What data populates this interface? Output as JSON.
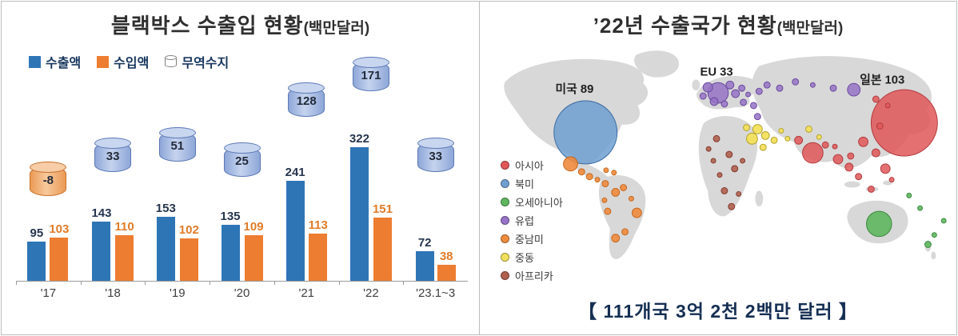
{
  "left_panel": {
    "title": "블랙박스 수출입 현황",
    "title_unit": "(백만달러)"
  },
  "right_panel": {
    "title": "’22년 수출국가 현황",
    "title_unit": "(백만달러)",
    "legend": [
      {
        "label": "아시아",
        "color": "#e15759"
      },
      {
        "label": "북미",
        "color": "#6f9fd0"
      },
      {
        "label": "오세아니아",
        "color": "#5fb65f"
      },
      {
        "label": "유럽",
        "color": "#9673c6"
      },
      {
        "label": "중남미",
        "color": "#ef8b3e"
      },
      {
        "label": "중동",
        "color": "#f2e05c"
      },
      {
        "label": "아프리카",
        "color": "#b0604f"
      }
    ],
    "caption": "【 111개국 3억 2천 2백만 달러 】"
  },
  "chart_data": [
    {
      "type": "bar",
      "title": "블랙박스 수출입 현황(백만달러)",
      "categories": [
        "'17",
        "'18",
        "'19",
        "'20",
        "'21",
        "'22",
        "'23.1~3"
      ],
      "series": [
        {
          "name": "수출액",
          "color": "#2e75b6",
          "values": [
            95,
            143,
            153,
            135,
            241,
            322,
            72
          ]
        },
        {
          "name": "수입액",
          "color": "#ed7d31",
          "values": [
            103,
            110,
            102,
            109,
            113,
            151,
            38
          ]
        },
        {
          "name": "무역수지",
          "color": "#a9bce2",
          "negative_color": "#f2a564",
          "values": [
            -8,
            33,
            51,
            25,
            128,
            171,
            33
          ]
        }
      ],
      "ylim": [
        0,
        350
      ],
      "grid": false,
      "legend_position": "top-left",
      "value_labels": true
    },
    {
      "type": "scatter",
      "subtype": "world-bubble-map",
      "title": "’22년 수출국가 현황(백만달러)",
      "labeled_points": [
        {
          "label": "미국 89",
          "country": "미국",
          "value": 89,
          "region": "북미"
        },
        {
          "label": "EU 33",
          "country": "EU",
          "value": 33,
          "region": "유럽"
        },
        {
          "label": "일본 103",
          "country": "일본",
          "value": 103,
          "region": "아시아"
        }
      ],
      "regions_legend": [
        "아시아",
        "북미",
        "오세아니아",
        "유럽",
        "중남미",
        "중동",
        "아프리카"
      ],
      "caption": "【 111개국 3억 2천 2백만 달러 】",
      "total_countries": 111
    }
  ]
}
